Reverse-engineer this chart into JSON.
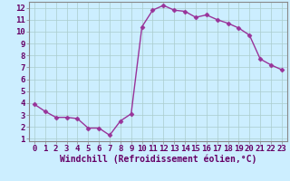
{
  "x": [
    0,
    1,
    2,
    3,
    4,
    5,
    6,
    7,
    8,
    9,
    10,
    11,
    12,
    13,
    14,
    15,
    16,
    17,
    18,
    19,
    20,
    21,
    22,
    23
  ],
  "y": [
    3.9,
    3.3,
    2.8,
    2.8,
    2.7,
    1.9,
    1.9,
    1.3,
    2.5,
    3.1,
    10.4,
    11.8,
    12.2,
    11.8,
    11.7,
    11.2,
    11.4,
    11.0,
    10.7,
    10.3,
    9.7,
    7.7,
    7.2,
    6.8
  ],
  "line_color": "#993399",
  "marker": "D",
  "markersize": 2.5,
  "linewidth": 1.0,
  "xlabel": "Windchill (Refroidissement éolien,°C)",
  "xlabel_fontsize": 7,
  "xlim": [
    -0.5,
    23.5
  ],
  "ylim": [
    0.8,
    12.5
  ],
  "yticks": [
    1,
    2,
    3,
    4,
    5,
    6,
    7,
    8,
    9,
    10,
    11,
    12
  ],
  "xticks": [
    0,
    1,
    2,
    3,
    4,
    5,
    6,
    7,
    8,
    9,
    10,
    11,
    12,
    13,
    14,
    15,
    16,
    17,
    18,
    19,
    20,
    21,
    22,
    23
  ],
  "bg_color": "#cceeff",
  "grid_color": "#aacccc",
  "tick_fontsize": 6.5,
  "spine_color": "#888888"
}
